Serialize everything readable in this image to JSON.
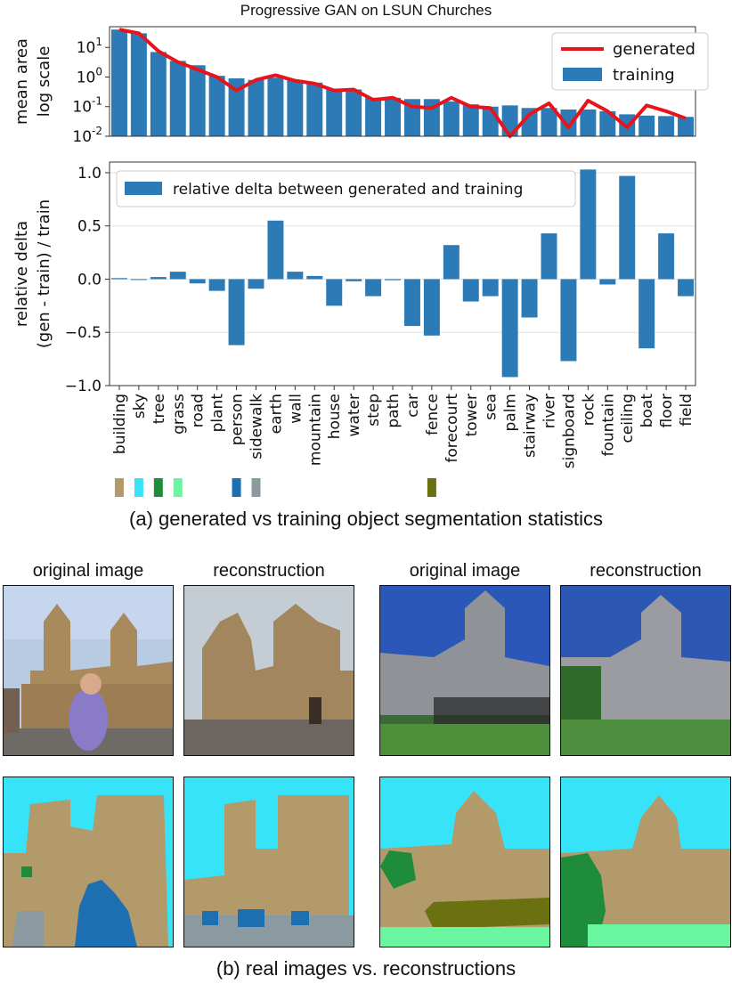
{
  "chart_data": [
    {
      "type": "bar",
      "title": "Progressive GAN on LSUN Churches",
      "ylabel": "mean area\nlog scale",
      "yscale": "log",
      "ylim": [
        0.01,
        50
      ],
      "yticks": [
        "10^1",
        "10^0",
        "10^-1",
        "10^-2"
      ],
      "categories": [
        "building",
        "sky",
        "tree",
        "grass",
        "road",
        "plant",
        "person",
        "sidewalk",
        "earth",
        "wall",
        "mountain",
        "house",
        "water",
        "step",
        "path",
        "car",
        "fence",
        "forecourt",
        "tower",
        "sea",
        "palm",
        "stairway",
        "river",
        "signboard",
        "rock",
        "fountain",
        "ceiling",
        "boat",
        "floor",
        "field"
      ],
      "series": [
        {
          "name": "training",
          "kind": "bar",
          "color": "#2c7bb6",
          "values": [
            40,
            30,
            7,
            3.5,
            2.5,
            1.1,
            0.9,
            0.8,
            0.95,
            0.8,
            0.65,
            0.4,
            0.38,
            0.2,
            0.2,
            0.18,
            0.18,
            0.15,
            0.12,
            0.1,
            0.11,
            0.09,
            0.09,
            0.08,
            0.08,
            0.07,
            0.055,
            0.05,
            0.048,
            0.045
          ]
        },
        {
          "name": "generated",
          "kind": "line",
          "color": "#e8141b",
          "values": [
            40,
            30,
            7.5,
            3.2,
            1.8,
            1.0,
            0.35,
            0.8,
            1.15,
            0.75,
            0.6,
            0.35,
            0.38,
            0.17,
            0.2,
            0.1,
            0.09,
            0.2,
            0.1,
            0.09,
            0.01,
            0.055,
            0.13,
            0.02,
            0.16,
            0.07,
            0.02,
            0.11,
            0.07,
            0.04
          ]
        }
      ],
      "legend": "top-right"
    },
    {
      "type": "bar",
      "ylabel": "relative delta\n(gen - train) / train",
      "ylim": [
        -1.0,
        1.1
      ],
      "yticks": [
        "1.0",
        "0.5",
        "0.0",
        "−0.5",
        "−1.0"
      ],
      "grid": true,
      "categories": [
        "building",
        "sky",
        "tree",
        "grass",
        "road",
        "plant",
        "person",
        "sidewalk",
        "earth",
        "wall",
        "mountain",
        "house",
        "water",
        "step",
        "path",
        "car",
        "fence",
        "forecourt",
        "tower",
        "sea",
        "palm",
        "stairway",
        "river",
        "signboard",
        "rock",
        "fountain",
        "ceiling",
        "boat",
        "floor",
        "field"
      ],
      "series": [
        {
          "name": "relative delta between generated and training",
          "color": "#2c7bb6",
          "values": [
            0.01,
            0.0,
            0.02,
            0.07,
            -0.04,
            -0.11,
            -0.62,
            -0.09,
            0.55,
            0.07,
            0.03,
            -0.25,
            -0.02,
            -0.16,
            -0.01,
            -0.44,
            -0.53,
            0.32,
            -0.21,
            -0.16,
            -0.92,
            -0.36,
            0.43,
            -0.77,
            1.03,
            -0.05,
            0.97,
            -0.65,
            0.43,
            -0.16
          ]
        }
      ],
      "legend": "top-left"
    }
  ],
  "swatches": [
    {
      "category": "building",
      "color": "#b39a6a"
    },
    {
      "category": "sky",
      "color": "#37e3f8"
    },
    {
      "category": "tree",
      "color": "#1e8c3a"
    },
    {
      "category": "grass",
      "color": "#6af5a0"
    },
    {
      "category": "person",
      "color": "#1c6fb0"
    },
    {
      "category": "sidewalk",
      "color": "#8a9aa0"
    },
    {
      "category": "fence",
      "color": "#6b7010"
    }
  ],
  "caption_a": "(a) generated vs training object segmentation statistics",
  "caption_b": "(b) real images vs. reconstructions",
  "image_titles": [
    "original image",
    "reconstruction",
    "original image",
    "reconstruction"
  ]
}
